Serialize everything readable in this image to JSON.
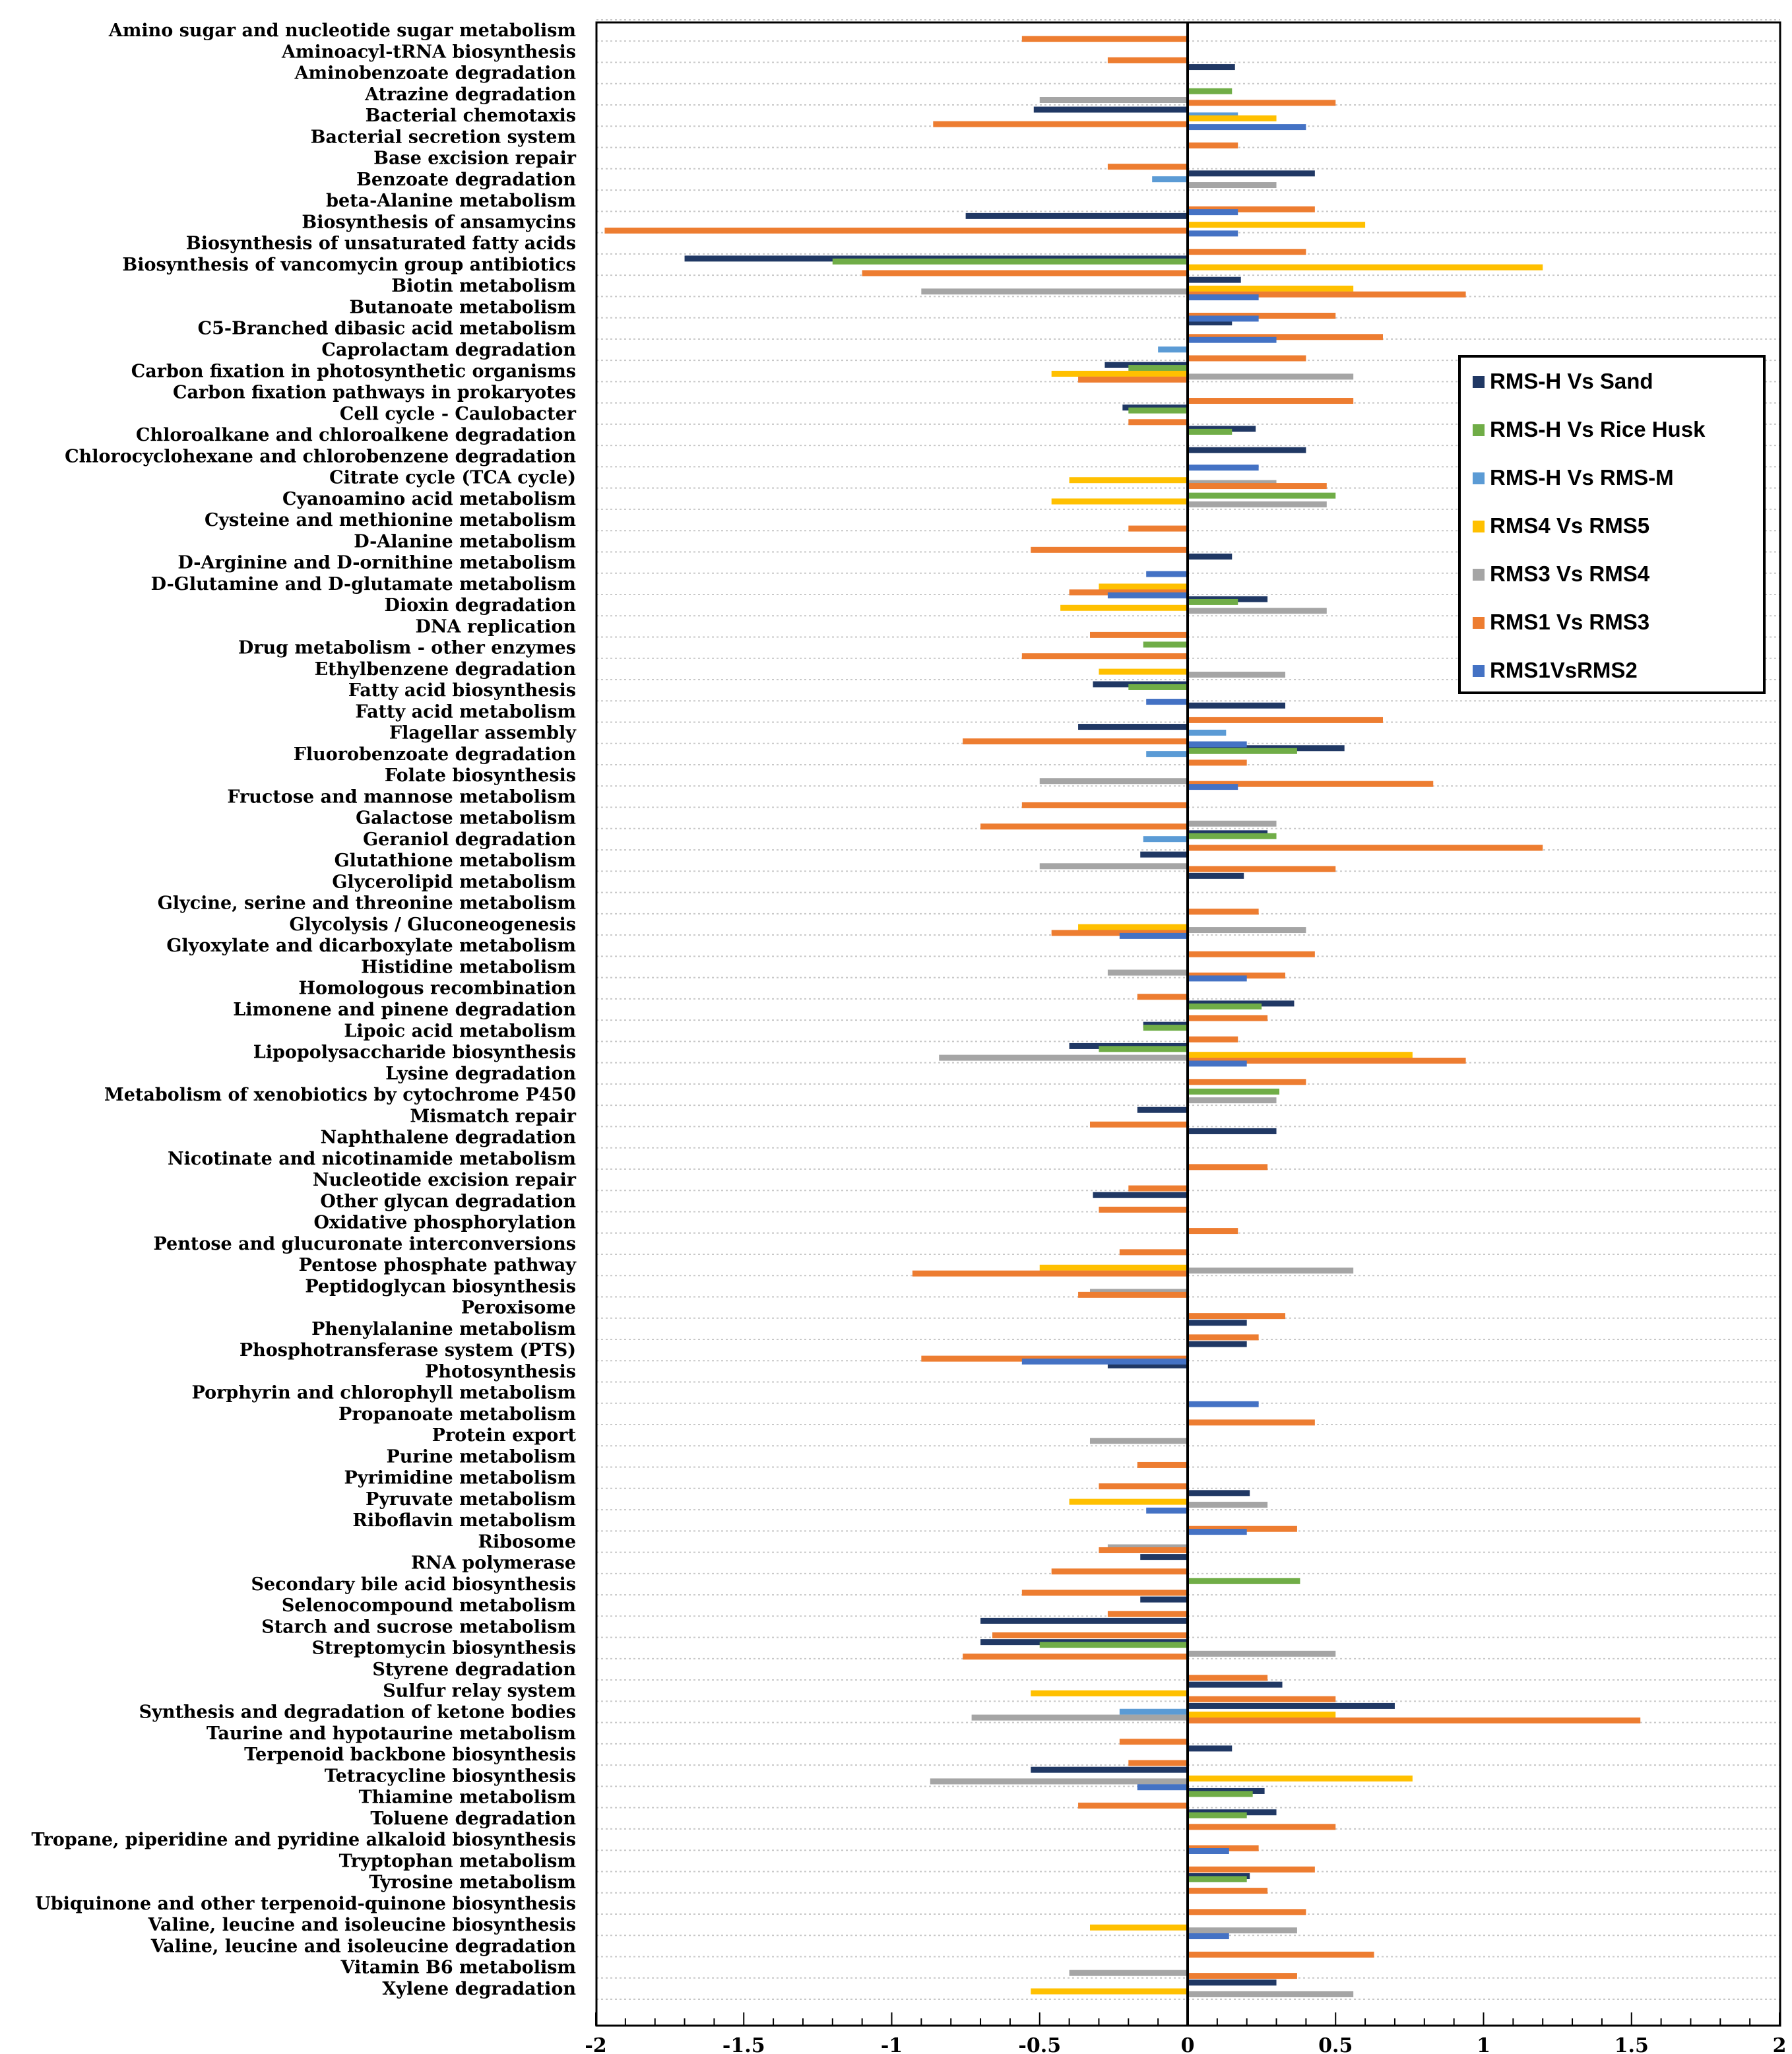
{
  "chart_data": {
    "type": "bar",
    "orientation": "horizontal",
    "title": "",
    "xlabel": "",
    "ylabel": "",
    "xlim": [
      -2,
      2
    ],
    "x_ticks": [
      -2,
      -1.5,
      -1,
      -0.5,
      0,
      0.5,
      1,
      1.5,
      2
    ],
    "x_tick_labels": [
      "-2",
      "-1.5",
      "-1",
      "-0.5",
      "0",
      "0.5",
      "1",
      "1.5",
      "2"
    ],
    "grid": "horizontal dotted",
    "legend_position": "right",
    "categories": [
      "Amino sugar and nucleotide sugar metabolism",
      "Aminoacyl-tRNA biosynthesis",
      "Aminobenzoate degradation",
      "Atrazine degradation",
      "Bacterial chemotaxis",
      "Bacterial secretion system",
      "Base excision repair",
      "Benzoate degradation",
      "beta-Alanine metabolism",
      "Biosynthesis of ansamycins",
      "Biosynthesis of unsaturated fatty acids",
      "Biosynthesis of vancomycin group antibiotics",
      "Biotin metabolism",
      "Butanoate metabolism",
      "C5-Branched dibasic acid metabolism",
      "Caprolactam degradation",
      "Carbon fixation in photosynthetic organisms",
      "Carbon fixation pathways in prokaryotes",
      "Cell cycle - Caulobacter",
      "Chloroalkane and chloroalkene degradation",
      "Chlorocyclohexane and chlorobenzene degradation",
      "Citrate cycle (TCA cycle)",
      "Cyanoamino acid metabolism",
      "Cysteine and methionine metabolism",
      "D-Alanine metabolism",
      "D-Arginine and D-ornithine metabolism",
      "D-Glutamine and D-glutamate metabolism",
      "Dioxin degradation",
      "DNA replication",
      "Drug metabolism - other enzymes",
      "Ethylbenzene degradation",
      "Fatty acid biosynthesis",
      "Fatty acid metabolism",
      "Flagellar assembly",
      "Fluorobenzoate degradation",
      "Folate biosynthesis",
      "Fructose and mannose metabolism",
      "Galactose metabolism",
      "Geraniol degradation",
      "Glutathione metabolism",
      "Glycerolipid metabolism",
      "Glycine, serine and threonine metabolism",
      "Glycolysis / Gluconeogenesis",
      "Glyoxylate and dicarboxylate metabolism",
      "Histidine metabolism",
      "Homologous recombination",
      "Limonene and pinene degradation",
      "Lipoic acid metabolism",
      "Lipopolysaccharide biosynthesis",
      "Lysine degradation",
      "Metabolism of xenobiotics by cytochrome P450",
      "Mismatch repair",
      "Naphthalene degradation",
      "Nicotinate and nicotinamide metabolism",
      "Nucleotide excision repair",
      "Other glycan degradation",
      "Oxidative phosphorylation",
      "Pentose and glucuronate interconversions",
      "Pentose phosphate pathway",
      "Peptidoglycan biosynthesis",
      "Peroxisome",
      "Phenylalanine metabolism",
      "Phosphotransferase system (PTS)",
      "Photosynthesis",
      "Porphyrin and chlorophyll metabolism",
      "Propanoate metabolism",
      "Protein export",
      "Purine metabolism",
      "Pyrimidine metabolism",
      "Pyruvate metabolism",
      "Riboflavin metabolism",
      "Ribosome",
      "RNA polymerase",
      "Secondary bile acid biosynthesis",
      "Selenocompound metabolism",
      "Starch and sucrose metabolism",
      "Streptomycin biosynthesis",
      "Styrene degradation",
      "Sulfur relay system",
      "Synthesis and degradation of ketone bodies",
      "Taurine and hypotaurine metabolism",
      "Terpenoid backbone biosynthesis",
      "Tetracycline biosynthesis",
      "Thiamine metabolism",
      "Toluene degradation",
      "Tropane, piperidine and pyridine alkaloid biosynthesis",
      "Tryptophan metabolism",
      "Tyrosine metabolism",
      "Ubiquinone and other terpenoid-quinone biosynthesis",
      "Valine, leucine and isoleucine biosynthesis",
      "Valine, leucine and isoleucine degradation",
      "Vitamin B6 metabolism",
      "Xylene degradation"
    ],
    "series": [
      {
        "name": "RMS-H Vs Sand",
        "color": "#203864",
        "values": [
          0,
          0,
          0.16,
          0,
          -0.52,
          0,
          0,
          0.43,
          0,
          -0.75,
          0,
          -1.7,
          0.18,
          0,
          0.15,
          0,
          -0.28,
          0,
          -0.22,
          0.23,
          0.4,
          0,
          0,
          0,
          0,
          0.15,
          0,
          0.27,
          0,
          0,
          0,
          -0.32,
          0.33,
          -0.37,
          0.53,
          0,
          0,
          0,
          0.27,
          -0.16,
          0.19,
          0,
          0,
          0,
          0,
          0,
          0.36,
          -0.15,
          -0.4,
          0,
          0,
          -0.17,
          0.3,
          0,
          0,
          -0.32,
          0,
          0,
          0,
          0,
          0,
          0.2,
          0.2,
          -0.27,
          0,
          0,
          0,
          0,
          0,
          0.21,
          0,
          0,
          -0.16,
          0,
          -0.16,
          -0.7,
          -0.7,
          0,
          0.32,
          0.7,
          0,
          0.15,
          -0.53,
          0.26,
          0.3,
          0,
          0,
          0.21,
          0,
          0,
          0,
          0,
          0.3
        ]
      },
      {
        "name": "RMS-H Vs Rice Husk",
        "color": "#70AD47",
        "values": [
          0,
          0,
          0,
          0.15,
          0,
          0,
          0,
          0,
          0,
          0,
          0,
          -1.2,
          0,
          0,
          0,
          0,
          -0.2,
          0,
          -0.2,
          0.15,
          0,
          0,
          0.5,
          0,
          0,
          0,
          0,
          0.17,
          0,
          -0.15,
          0,
          -0.2,
          0,
          0,
          0.37,
          0,
          0,
          0,
          0.3,
          0,
          0,
          0,
          0,
          0,
          0,
          0,
          0.25,
          -0.15,
          -0.3,
          0,
          0.31,
          0,
          0,
          0,
          0,
          0,
          0,
          0,
          0,
          0,
          0,
          0,
          0,
          0,
          0,
          0,
          0,
          0,
          0,
          0,
          0,
          0,
          0,
          0.38,
          0,
          0,
          -0.5,
          0,
          0,
          0,
          0,
          0,
          0,
          0.22,
          0.2,
          0,
          0,
          0.2,
          0,
          0,
          0,
          0,
          0
        ]
      },
      {
        "name": "RMS-H Vs RMS-M",
        "color": "#5B9BD5",
        "values": [
          0,
          0,
          0,
          0,
          0.17,
          0,
          0,
          -0.12,
          0,
          0,
          0,
          0,
          0,
          0,
          0,
          -0.1,
          0,
          0,
          0,
          0,
          0,
          0,
          0,
          0,
          0,
          0,
          0,
          0,
          0,
          0,
          0,
          0,
          0,
          0.13,
          -0.14,
          0,
          0,
          0,
          -0.15,
          0,
          0,
          0,
          0,
          0,
          0,
          0,
          0,
          0,
          0,
          0,
          0,
          0,
          0,
          0,
          0,
          0,
          0,
          0,
          0,
          0,
          0,
          0,
          0,
          0,
          0,
          0,
          0,
          0,
          0,
          0,
          0,
          0,
          0,
          0,
          0,
          0,
          0,
          0,
          0,
          -0.23,
          0,
          0,
          0,
          0,
          0,
          0,
          0,
          0,
          0,
          0,
          0,
          0,
          0
        ]
      },
      {
        "name": "RMS4 Vs RMS5",
        "color": "#FFC000",
        "values": [
          0,
          0,
          0,
          0,
          0.3,
          0,
          0,
          0,
          0,
          0.6,
          0,
          1.2,
          0.56,
          0,
          0,
          0,
          -0.46,
          0,
          0,
          0,
          0,
          -0.4,
          -0.46,
          0,
          0,
          0,
          -0.3,
          -0.43,
          0,
          0,
          -0.3,
          0,
          0,
          0,
          0,
          0,
          0,
          0,
          0,
          0,
          0,
          0,
          -0.37,
          0,
          0,
          0,
          0,
          0,
          0.76,
          0,
          0,
          0,
          0,
          0,
          0,
          0,
          0,
          0,
          -0.5,
          0,
          0,
          0,
          0,
          0,
          0,
          0,
          0,
          0,
          0,
          -0.4,
          0,
          0,
          0,
          0,
          0,
          0,
          0,
          0,
          -0.53,
          0.5,
          0,
          0,
          0.76,
          0,
          0,
          0,
          0,
          0,
          0,
          -0.33,
          0,
          0,
          -0.53
        ]
      },
      {
        "name": "RMS3 Vs RMS4",
        "color": "#A5A5A5",
        "values": [
          0,
          0,
          0,
          -0.5,
          0,
          0,
          0,
          0.3,
          0,
          0,
          0,
          0,
          -0.9,
          0,
          0,
          0,
          0.56,
          0,
          0,
          0,
          0,
          0.3,
          0.47,
          0,
          0,
          0,
          0,
          0.47,
          0,
          0,
          0.33,
          0,
          0,
          0,
          0,
          -0.5,
          0,
          0.3,
          0,
          -0.5,
          0,
          0,
          0.4,
          0,
          -0.27,
          0,
          0,
          0,
          -0.84,
          0,
          0.3,
          0,
          0,
          0,
          0,
          0,
          0,
          0,
          0.56,
          -0.33,
          0,
          0,
          0,
          0,
          0,
          0,
          -0.33,
          0,
          0,
          0.27,
          0,
          -0.27,
          0,
          0,
          0,
          0,
          0.5,
          0,
          0,
          -0.73,
          0,
          0,
          -0.87,
          0,
          0,
          0,
          0,
          0,
          0,
          0.37,
          0,
          -0.4,
          0.56
        ]
      },
      {
        "name": "RMS1 Vs RMS3",
        "color": "#ED7D31",
        "values": [
          -0.56,
          -0.27,
          0,
          0.5,
          -0.86,
          0.17,
          -0.27,
          0,
          0.43,
          -1.97,
          0.4,
          -1.1,
          0.94,
          0.5,
          0.66,
          0.4,
          -0.37,
          0.56,
          -0.2,
          0,
          0,
          0.47,
          0,
          -0.2,
          -0.53,
          0,
          -0.4,
          0,
          -0.33,
          -0.56,
          0,
          0,
          0.66,
          -0.76,
          0.2,
          0.83,
          -0.56,
          -0.7,
          1.2,
          0.5,
          0,
          0.24,
          -0.46,
          0.43,
          0.33,
          -0.17,
          0.27,
          0.17,
          0.94,
          0.4,
          0,
          -0.33,
          0,
          0.27,
          -0.2,
          -0.3,
          0.17,
          -0.23,
          -0.93,
          -0.37,
          0.33,
          0.24,
          -0.9,
          0,
          0,
          0.43,
          0,
          -0.17,
          -0.3,
          0,
          0.37,
          -0.3,
          -0.46,
          -0.56,
          -0.27,
          -0.66,
          -0.76,
          0.27,
          0.5,
          1.53,
          -0.23,
          -0.2,
          0,
          -0.37,
          0.5,
          0.24,
          0.43,
          0.27,
          0.4,
          0,
          0.63,
          0.37,
          0
        ]
      },
      {
        "name": "RMS1VsRMS2",
        "color": "#4472C4",
        "values": [
          0,
          0,
          0,
          0,
          0.4,
          0,
          0,
          0,
          0.17,
          0.17,
          0,
          0,
          0.24,
          0.24,
          0.3,
          0,
          0,
          0,
          0,
          0,
          0.24,
          0,
          0,
          0,
          0,
          -0.14,
          -0.27,
          0,
          0,
          0,
          0,
          -0.14,
          0,
          0.2,
          0,
          0.17,
          0,
          0,
          0,
          0,
          0,
          0,
          -0.23,
          0,
          0.2,
          0,
          0,
          0,
          0.2,
          0,
          0,
          0,
          0,
          0,
          0,
          0,
          0,
          0,
          0,
          0,
          0,
          0,
          -0.56,
          0,
          0.24,
          0,
          0,
          0,
          0,
          -0.14,
          0.2,
          0,
          0,
          0,
          0,
          0,
          0,
          0,
          0,
          0,
          0,
          0,
          -0.17,
          0,
          0,
          0.14,
          0,
          0,
          0,
          0.14,
          0,
          0,
          0
        ]
      }
    ]
  }
}
